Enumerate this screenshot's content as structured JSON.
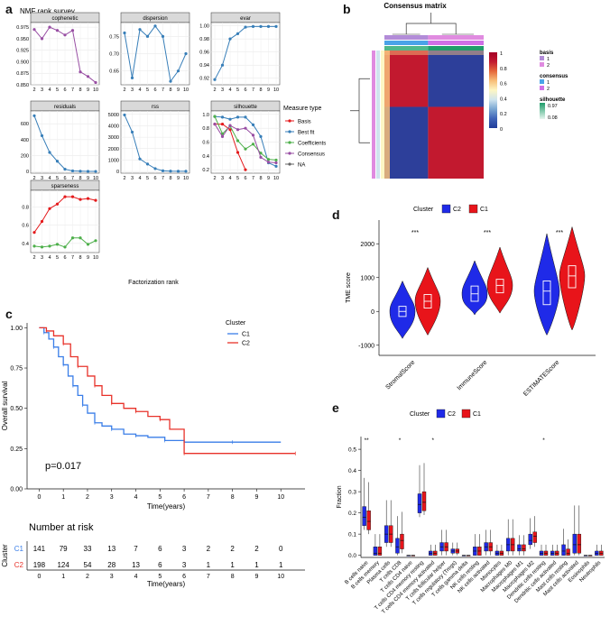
{
  "labels": {
    "a": "a",
    "b": "b",
    "c": "c",
    "d": "d",
    "e": "e"
  },
  "chart_data": [
    {
      "id": "a",
      "type": "line",
      "title": "NMF rank survey",
      "xlabel": "Factorization rank",
      "x": [
        2,
        3,
        4,
        5,
        6,
        7,
        8,
        9,
        10
      ],
      "legend_title": "Measure type",
      "legend": [
        "Basis",
        "Best fit",
        "Coefficients",
        "Consensus",
        "NA"
      ],
      "legend_colors": [
        "#e41a1c",
        "#377eb8",
        "#4daf4a",
        "#984ea3",
        "#666666"
      ],
      "facets": [
        {
          "name": "cophenetic",
          "yticks": [
            "0.975",
            "0.950",
            "0.925",
            "0.900",
            "0.875",
            "0.850"
          ],
          "ylim": [
            0.85,
            0.985
          ],
          "series": [
            {
              "name": "Consensus",
              "color": "#984ea3",
              "values": [
                0.97,
                0.95,
                0.975,
                0.968,
                0.958,
                0.968,
                0.878,
                0.868,
                0.855
              ]
            }
          ]
        },
        {
          "name": "dispersion",
          "yticks": [
            "0.75",
            "0.70",
            "0.65"
          ],
          "ylim": [
            0.61,
            0.79
          ],
          "series": [
            {
              "name": "Consensus",
              "color": "#377eb8",
              "values": [
                0.76,
                0.63,
                0.77,
                0.75,
                0.78,
                0.75,
                0.62,
                0.65,
                0.7
              ]
            }
          ]
        },
        {
          "name": "evar",
          "yticks": [
            "1.00",
            "0.98",
            "0.96",
            "0.94",
            "0.92"
          ],
          "ylim": [
            0.91,
            1.005
          ],
          "series": [
            {
              "name": "Best fit",
              "color": "#377eb8",
              "values": [
                0.918,
                0.94,
                0.98,
                0.988,
                0.998,
                0.999,
                0.999,
                0.999,
                0.999
              ]
            }
          ]
        },
        {
          "name": "residuals",
          "yticks": [
            "600",
            "400",
            "200",
            "0"
          ],
          "ylim": [
            -20,
            760
          ],
          "series": [
            {
              "name": "Best fit",
              "color": "#377eb8",
              "values": [
                700,
                450,
                240,
                130,
                30,
                8,
                5,
                3,
                2
              ]
            }
          ]
        },
        {
          "name": "rss",
          "yticks": [
            "5000",
            "4000",
            "3000",
            "2000",
            "1000",
            "0"
          ],
          "ylim": [
            -150,
            5300
          ],
          "series": [
            {
              "name": "Best fit",
              "color": "#377eb8",
              "values": [
                4950,
                3450,
                1100,
                650,
                250,
                60,
                30,
                20,
                15
              ]
            }
          ]
        },
        {
          "name": "silhouette",
          "yticks": [
            "1.0",
            "0.8",
            "0.6",
            "0.4",
            "0.2"
          ],
          "ylim": [
            0.15,
            1.05
          ],
          "series": [
            {
              "name": "Basis",
              "color": "#e41a1c",
              "values": [
                0.86,
                0.86,
                0.78,
                0.45,
                0.2,
                null,
                null,
                null,
                null
              ]
            },
            {
              "name": "Best fit",
              "color": "#377eb8",
              "values": [
                0.97,
                0.96,
                0.93,
                0.96,
                0.96,
                0.85,
                0.68,
                0.3,
                0.25
              ]
            },
            {
              "name": "Coefficients",
              "color": "#4daf4a",
              "values": [
                0.97,
                0.72,
                0.83,
                0.62,
                0.5,
                0.57,
                0.44,
                0.35,
                0.34
              ]
            },
            {
              "name": "Consensus",
              "color": "#984ea3",
              "values": [
                0.86,
                0.68,
                0.84,
                0.78,
                0.8,
                0.7,
                0.38,
                0.31,
                0.3
              ]
            }
          ]
        },
        {
          "name": "sparseness",
          "yticks": [
            "0.8",
            "0.6",
            "0.4"
          ],
          "ylim": [
            0.3,
            0.98
          ],
          "series": [
            {
              "name": "Basis",
              "color": "#e41a1c",
              "values": [
                0.52,
                0.64,
                0.78,
                0.83,
                0.91,
                0.91,
                0.88,
                0.89,
                0.87
              ]
            },
            {
              "name": "Coefficients",
              "color": "#4daf4a",
              "values": [
                0.37,
                0.36,
                0.37,
                0.39,
                0.36,
                0.46,
                0.46,
                0.39,
                0.43
              ]
            }
          ]
        }
      ]
    },
    {
      "id": "b",
      "type": "heatmap",
      "title": "Consensus matrix",
      "colorbar_ticks": [
        "1",
        "0.8",
        "0.6",
        "0.4",
        "0.2",
        "0"
      ],
      "colorbar_colors": [
        "#1f3c99",
        "#3f63b8",
        "#7aa6d2",
        "#cfe4ee",
        "#fdf6c4",
        "#f7be79",
        "#e5683b",
        "#c2192f",
        "#a50026"
      ],
      "legend": {
        "basis_title": "basis",
        "basis": [
          {
            "label": "1",
            "color": "#b28cd8"
          },
          {
            "label": "2",
            "color": "#e08be0"
          }
        ],
        "consensus_title": "consensus",
        "consensus": [
          {
            "label": "1",
            "color": "#4aa3e8"
          },
          {
            "label": "2",
            "color": "#cf6fe6"
          }
        ],
        "silhouette_title": "silhouette",
        "silhouette": [
          "0.97",
          "0.08"
        ]
      },
      "clusters": [
        {
          "size_fraction": 0.44,
          "value": 0.92
        },
        {
          "size_fraction": 0.56,
          "value": 0.06
        }
      ]
    },
    {
      "id": "c",
      "type": "line",
      "ylabel": "Overall survival",
      "xlabel": "Time(years)",
      "legend_title": "Cluster",
      "pvalue": "p=0.017",
      "xticks": [
        "0",
        "1",
        "2",
        "3",
        "4",
        "5",
        "6",
        "7",
        "8",
        "9",
        "10"
      ],
      "yticks": [
        "1.00",
        "0.75",
        "0.50",
        "0.25",
        "0.00"
      ],
      "xlim": [
        -0.5,
        11
      ],
      "ylim": [
        0,
        1.03
      ],
      "series": [
        {
          "name": "C1",
          "color": "#3a7ee8",
          "points": [
            [
              0,
              1
            ],
            [
              0.2,
              0.97
            ],
            [
              0.4,
              0.93
            ],
            [
              0.6,
              0.88
            ],
            [
              0.8,
              0.82
            ],
            [
              1,
              0.77
            ],
            [
              1.2,
              0.7
            ],
            [
              1.4,
              0.64
            ],
            [
              1.6,
              0.58
            ],
            [
              1.8,
              0.52
            ],
            [
              2,
              0.47
            ],
            [
              2.3,
              0.41
            ],
            [
              2.6,
              0.39
            ],
            [
              3,
              0.37
            ],
            [
              3.5,
              0.34
            ],
            [
              4,
              0.33
            ],
            [
              4.5,
              0.32
            ],
            [
              5.2,
              0.3
            ],
            [
              6,
              0.29
            ],
            [
              8,
              0.29
            ],
            [
              10,
              0.29
            ]
          ]
        },
        {
          "name": "C2",
          "color": "#e8322a",
          "points": [
            [
              0,
              1
            ],
            [
              0.3,
              0.98
            ],
            [
              0.6,
              0.95
            ],
            [
              1,
              0.9
            ],
            [
              1.3,
              0.82
            ],
            [
              1.6,
              0.76
            ],
            [
              2,
              0.7
            ],
            [
              2.3,
              0.64
            ],
            [
              2.6,
              0.58
            ],
            [
              3,
              0.53
            ],
            [
              3.5,
              0.5
            ],
            [
              4,
              0.48
            ],
            [
              4.5,
              0.45
            ],
            [
              5,
              0.43
            ],
            [
              5.4,
              0.37
            ],
            [
              6,
              0.22
            ],
            [
              8,
              0.22
            ],
            [
              10.6,
              0.22
            ]
          ]
        }
      ],
      "risk_table": {
        "title": "Number at risk",
        "ylabel": "Cluster",
        "xlabel": "Time(years)",
        "rows": [
          {
            "name": "C1",
            "color": "#3a7ee8",
            "values": [
              "141",
              "79",
              "33",
              "13",
              "7",
              "6",
              "3",
              "2",
              "2",
              "2",
              "0"
            ]
          },
          {
            "name": "C2",
            "color": "#e8322a",
            "values": [
              "198",
              "124",
              "54",
              "28",
              "13",
              "6",
              "3",
              "1",
              "1",
              "1",
              "1"
            ]
          }
        ]
      }
    },
    {
      "id": "d",
      "type": "violin",
      "legend_title": "Cluster",
      "legend": [
        {
          "name": "C2",
          "color": "#1f2ae8"
        },
        {
          "name": "C1",
          "color": "#e8141a"
        }
      ],
      "ylabel": "TME score",
      "yticks": [
        "2000",
        "1000",
        "0",
        "-1000"
      ],
      "ylim": [
        -1300,
        2700
      ],
      "categories": [
        "StromalScore",
        "ImmuneScore",
        "ESTIMATEScore"
      ],
      "significance": [
        "***",
        "***",
        "***"
      ],
      "series": [
        {
          "name": "C2",
          "color": "#1f2ae8",
          "median": [
            0,
            520,
            600
          ],
          "q1": [
            -150,
            300,
            200
          ],
          "q3": [
            150,
            750,
            900
          ],
          "min": [
            -800,
            -100,
            -700
          ],
          "max": [
            900,
            1500,
            2300
          ]
        },
        {
          "name": "C1",
          "color": "#e8141a",
          "median": [
            300,
            770,
            1050
          ],
          "q1": [
            100,
            550,
            700
          ],
          "q3": [
            500,
            950,
            1350
          ],
          "min": [
            -700,
            -50,
            -550
          ],
          "max": [
            1300,
            1900,
            2500
          ]
        }
      ]
    },
    {
      "id": "e",
      "type": "box",
      "legend_title": "Cluster",
      "legend": [
        {
          "name": "C2",
          "color": "#1f2ae8"
        },
        {
          "name": "C1",
          "color": "#e8141a"
        }
      ],
      "ylabel": "Fraction",
      "yticks": [
        "0.5",
        "0.4",
        "0.3",
        "0.2",
        "0.1",
        "0.0"
      ],
      "ylim": [
        -0.01,
        0.56
      ],
      "categories": [
        "B cells naive",
        "B cells memory",
        "Plasma cells",
        "T cells CD8",
        "T cells CD4 naive",
        "T cells CD4 memory resting",
        "T cells CD4 memory activated",
        "T cells follicular helper",
        "T cells regulatory (Tregs)",
        "T cells gamma delta",
        "NK cells resting",
        "NK cells activated",
        "Monocytes",
        "Macrophages M0",
        "Macrophages M1",
        "Macrophages M2",
        "Dendritic cells resting",
        "Dendritic cells activated",
        "Mast cells resting",
        "Mast cells activated",
        "Eosinophils",
        "Neutrophils"
      ],
      "significance": [
        "**",
        "",
        "",
        "*",
        "",
        "",
        "*",
        "",
        "",
        "",
        "",
        "",
        "",
        "",
        "",
        "",
        "*",
        "",
        "",
        "",
        "",
        ""
      ],
      "series": [
        {
          "name": "C2",
          "color": "#1f2ae8",
          "median": [
            0.18,
            0.01,
            0.1,
            0.04,
            0.0,
            0.24,
            0.01,
            0.04,
            0.02,
            0.0,
            0.02,
            0.04,
            0.01,
            0.05,
            0.03,
            0.07,
            0.01,
            0.01,
            0.02,
            0.05,
            0.0,
            0.01
          ],
          "q1": [
            0.14,
            0.0,
            0.06,
            0.01,
            0.0,
            0.2,
            0.0,
            0.02,
            0.01,
            0.0,
            0.0,
            0.02,
            0.0,
            0.02,
            0.02,
            0.05,
            0.0,
            0.0,
            0.0,
            0.01,
            0.0,
            0.0
          ],
          "q3": [
            0.23,
            0.04,
            0.14,
            0.08,
            0.0,
            0.29,
            0.02,
            0.06,
            0.03,
            0.0,
            0.04,
            0.06,
            0.02,
            0.08,
            0.05,
            0.1,
            0.02,
            0.02,
            0.05,
            0.1,
            0.0,
            0.02
          ]
        },
        {
          "name": "C1",
          "color": "#e8141a",
          "median": [
            0.16,
            0.01,
            0.1,
            0.07,
            0.0,
            0.25,
            0.01,
            0.04,
            0.02,
            0.0,
            0.02,
            0.04,
            0.01,
            0.05,
            0.03,
            0.09,
            0.01,
            0.01,
            0.01,
            0.05,
            0.0,
            0.01
          ],
          "q1": [
            0.12,
            0.0,
            0.06,
            0.03,
            0.0,
            0.21,
            0.0,
            0.02,
            0.01,
            0.0,
            0.0,
            0.02,
            0.0,
            0.02,
            0.02,
            0.06,
            0.0,
            0.0,
            0.0,
            0.01,
            0.0,
            0.0
          ],
          "q3": [
            0.21,
            0.04,
            0.14,
            0.1,
            0.0,
            0.3,
            0.02,
            0.06,
            0.03,
            0.0,
            0.04,
            0.06,
            0.02,
            0.08,
            0.05,
            0.11,
            0.02,
            0.02,
            0.03,
            0.1,
            0.0,
            0.02
          ]
        }
      ]
    }
  ]
}
